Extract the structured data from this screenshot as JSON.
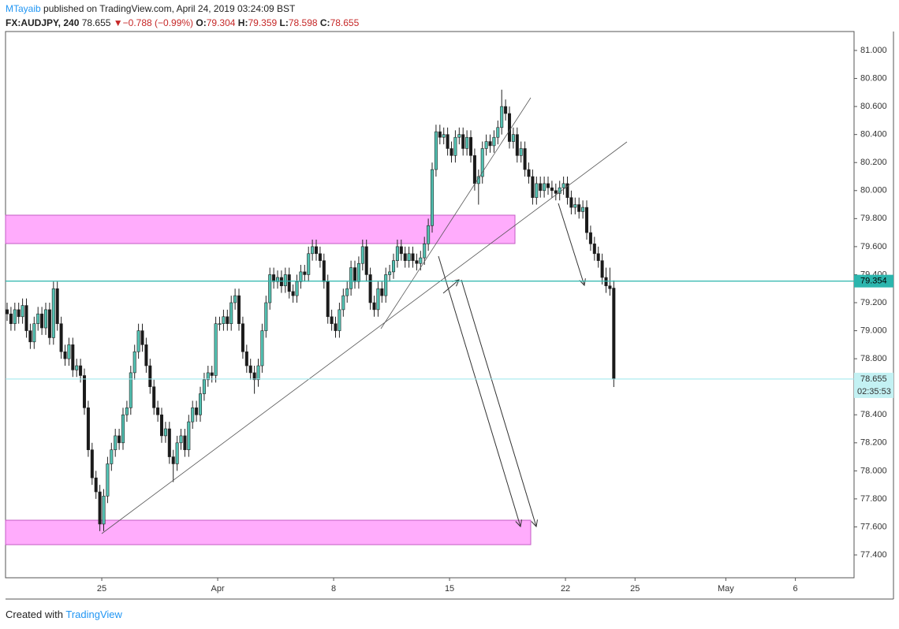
{
  "header": {
    "author": "MTayaib",
    "published": " published on TradingView.com, April 24, 2019 03:24:09 BST",
    "symbol": "FX:AUDJPY, 240",
    "arrow": "▼",
    "change": "−0.788 (−0.99%)",
    "ohlc_labels": [
      "O:",
      "H:",
      "L:",
      "C:"
    ]
  },
  "footer": {
    "created": "Created with",
    "brand": "TradingView"
  },
  "chart_data": {
    "type": "candlestick",
    "up_color": "#53c2b3",
    "down_color": "#1a1a1a",
    "hline": 79.354,
    "hline_label": "79.354",
    "countdown": "02:35:53",
    "xlim": [
      -0.41,
      219.18
    ],
    "xticks": [
      {
        "value": 24.5,
        "label": "25"
      },
      {
        "value": 54.5,
        "label": "Apr"
      },
      {
        "value": 84.5,
        "label": "8"
      },
      {
        "value": 114.5,
        "label": "15"
      },
      {
        "value": 144.5,
        "label": "22"
      },
      {
        "value": 162.5,
        "label": "25"
      },
      {
        "value": 186,
        "label": "May"
      },
      {
        "value": 204,
        "label": "6"
      }
    ],
    "ylim": [
      77.237,
      81.135
    ],
    "yticks": [
      {
        "value": 81,
        "label": "81.000"
      },
      {
        "value": 80.8,
        "label": "80.800"
      },
      {
        "value": 80.6,
        "label": "80.600"
      },
      {
        "value": 80.4,
        "label": "80.400"
      },
      {
        "value": 80.2,
        "label": "80.200"
      },
      {
        "value": 80,
        "label": "80.000"
      },
      {
        "value": 79.8,
        "label": "79.800"
      },
      {
        "value": 79.6,
        "label": "79.600"
      },
      {
        "value": 79.4,
        "label": "79.400"
      },
      {
        "value": 79.2,
        "label": "79.200"
      },
      {
        "value": 79,
        "label": "79.000"
      },
      {
        "value": 78.8,
        "label": "78.800"
      },
      {
        "value": 78.6,
        "label": "78.600"
      },
      {
        "value": 78.4,
        "label": "78.400"
      },
      {
        "value": 78.2,
        "label": "78.200"
      },
      {
        "value": 78,
        "label": "78.000"
      },
      {
        "value": 77.8,
        "label": "77.800"
      },
      {
        "value": 77.6,
        "label": "77.600"
      },
      {
        "value": 77.4,
        "label": "77.400"
      }
    ],
    "candles": [
      [
        79.15,
        79.2,
        79.07,
        79.12
      ],
      [
        79.12,
        79.17,
        79,
        79.05
      ],
      [
        79.05,
        79.2,
        79,
        79.15
      ],
      [
        79.15,
        79.2,
        79.05,
        79.1
      ],
      [
        79.1,
        79.23,
        79.05,
        79.18
      ],
      [
        79.18,
        79.23,
        78.95,
        79
      ],
      [
        79,
        79.05,
        78.87,
        78.92
      ],
      [
        78.92,
        79.1,
        78.87,
        79.05
      ],
      [
        79.05,
        79.17,
        79,
        79.12
      ],
      [
        79.12,
        79.17,
        78.97,
        79.02
      ],
      [
        79.02,
        79.2,
        78.97,
        79.15
      ],
      [
        79.15,
        79.2,
        78.9,
        78.95
      ],
      [
        78.95,
        79.35,
        78.9,
        79.3
      ],
      [
        79.3,
        79.35,
        79,
        79.05
      ],
      [
        79.05,
        79.1,
        78.8,
        78.85
      ],
      [
        78.85,
        78.9,
        78.75,
        78.8
      ],
      [
        78.8,
        78.95,
        78.75,
        78.9
      ],
      [
        78.9,
        78.95,
        78.67,
        78.72
      ],
      [
        78.72,
        78.8,
        78.67,
        78.75
      ],
      [
        78.75,
        78.8,
        78.63,
        78.68
      ],
      [
        78.68,
        78.73,
        78.4,
        78.45
      ],
      [
        78.45,
        78.5,
        78.1,
        78.15
      ],
      [
        78.15,
        78.2,
        77.9,
        77.95
      ],
      [
        77.95,
        78,
        77.8,
        77.85
      ],
      [
        77.85,
        77.9,
        77.57,
        77.62
      ],
      [
        77.62,
        77.87,
        77.57,
        77.82
      ],
      [
        77.82,
        78.1,
        77.77,
        78.05
      ],
      [
        78.05,
        78.2,
        78,
        78.15
      ],
      [
        78.15,
        78.3,
        78.1,
        78.25
      ],
      [
        78.25,
        78.3,
        78.15,
        78.2
      ],
      [
        78.2,
        78.45,
        78.15,
        78.4
      ],
      [
        78.4,
        78.5,
        78.35,
        78.45
      ],
      [
        78.45,
        78.75,
        78.4,
        78.7
      ],
      [
        78.7,
        78.9,
        78.65,
        78.85
      ],
      [
        78.85,
        79.05,
        78.8,
        79
      ],
      [
        79,
        79.05,
        78.85,
        78.9
      ],
      [
        78.9,
        78.95,
        78.7,
        78.75
      ],
      [
        78.75,
        78.8,
        78.55,
        78.6
      ],
      [
        78.6,
        78.65,
        78.4,
        78.45
      ],
      [
        78.45,
        78.5,
        78.35,
        78.4
      ],
      [
        78.4,
        78.45,
        78.2,
        78.25
      ],
      [
        78.25,
        78.35,
        78.2,
        78.3
      ],
      [
        78.3,
        78.35,
        78.05,
        78.1
      ],
      [
        78.1,
        78.15,
        77.92,
        78.05
      ],
      [
        78.05,
        78.25,
        78,
        78.2
      ],
      [
        78.2,
        78.3,
        78.15,
        78.25
      ],
      [
        78.25,
        78.3,
        78.1,
        78.15
      ],
      [
        78.15,
        78.4,
        78.1,
        78.35
      ],
      [
        78.35,
        78.5,
        78.3,
        78.45
      ],
      [
        78.45,
        78.5,
        78.35,
        78.4
      ],
      [
        78.4,
        78.6,
        78.35,
        78.55
      ],
      [
        78.55,
        78.7,
        78.5,
        78.65
      ],
      [
        78.65,
        78.75,
        78.6,
        78.7
      ],
      [
        78.7,
        78.75,
        78.63,
        78.68
      ],
      [
        78.68,
        79.1,
        78.63,
        79.05
      ],
      [
        79.05,
        79.1,
        79,
        79.05
      ],
      [
        79.05,
        79.15,
        79,
        79.1
      ],
      [
        79.1,
        79.15,
        79,
        79.05
      ],
      [
        79.05,
        79.25,
        79,
        79.2
      ],
      [
        79.2,
        79.3,
        79.15,
        79.25
      ],
      [
        79.25,
        79.3,
        79,
        79.05
      ],
      [
        79.05,
        79.1,
        78.8,
        78.85
      ],
      [
        78.85,
        78.9,
        78.7,
        78.75
      ],
      [
        78.75,
        78.8,
        78.65,
        78.7
      ],
      [
        78.7,
        78.75,
        78.55,
        78.65
      ],
      [
        78.65,
        78.8,
        78.6,
        78.75
      ],
      [
        78.75,
        79.05,
        78.7,
        79
      ],
      [
        79,
        79.25,
        78.95,
        79.2
      ],
      [
        79.2,
        79.45,
        79.15,
        79.4
      ],
      [
        79.4,
        79.45,
        79.3,
        79.35
      ],
      [
        79.35,
        79.43,
        79.3,
        79.38
      ],
      [
        79.38,
        79.43,
        79.27,
        79.32
      ],
      [
        79.32,
        79.45,
        79.27,
        79.4
      ],
      [
        79.4,
        79.45,
        79.23,
        79.28
      ],
      [
        79.28,
        79.33,
        79.2,
        79.25
      ],
      [
        79.25,
        79.4,
        79.2,
        79.35
      ],
      [
        79.35,
        79.47,
        79.3,
        79.42
      ],
      [
        79.42,
        79.47,
        79.35,
        79.4
      ],
      [
        79.4,
        79.6,
        79.35,
        79.55
      ],
      [
        79.55,
        79.65,
        79.5,
        79.6
      ],
      [
        79.6,
        79.65,
        79.5,
        79.55
      ],
      [
        79.55,
        79.6,
        79.45,
        79.5
      ],
      [
        79.5,
        79.55,
        79.3,
        79.35
      ],
      [
        79.35,
        79.4,
        79.05,
        79.1
      ],
      [
        79.1,
        79.15,
        79,
        79.05
      ],
      [
        79.05,
        79.1,
        78.95,
        79
      ],
      [
        79,
        79.2,
        78.95,
        79.15
      ],
      [
        79.15,
        79.3,
        79.1,
        79.25
      ],
      [
        79.25,
        79.35,
        79.2,
        79.3
      ],
      [
        79.3,
        79.5,
        79.25,
        79.45
      ],
      [
        79.45,
        79.5,
        79.3,
        79.35
      ],
      [
        79.35,
        79.53,
        79.3,
        79.48
      ],
      [
        79.48,
        79.65,
        79.43,
        79.6
      ],
      [
        79.6,
        79.65,
        79.35,
        79.4
      ],
      [
        79.4,
        79.45,
        79.15,
        79.2
      ],
      [
        79.2,
        79.25,
        79.1,
        79.15
      ],
      [
        79.15,
        79.35,
        79.1,
        79.3
      ],
      [
        79.3,
        79.35,
        79.2,
        79.25
      ],
      [
        79.25,
        79.45,
        79.2,
        79.4
      ],
      [
        79.4,
        79.47,
        79.35,
        79.42
      ],
      [
        79.42,
        79.55,
        79.37,
        79.5
      ],
      [
        79.5,
        79.65,
        79.45,
        79.6
      ],
      [
        79.6,
        79.65,
        79.5,
        79.55
      ],
      [
        79.55,
        79.6,
        79.45,
        79.5
      ],
      [
        79.5,
        79.6,
        79.45,
        79.55
      ],
      [
        79.55,
        79.6,
        79.45,
        79.5
      ],
      [
        79.5,
        79.55,
        79.43,
        79.48
      ],
      [
        79.48,
        79.57,
        79.43,
        79.52
      ],
      [
        79.52,
        79.67,
        79.47,
        79.62
      ],
      [
        79.62,
        79.8,
        79.57,
        79.75
      ],
      [
        79.75,
        80.2,
        79.7,
        80.15
      ],
      [
        80.15,
        80.47,
        80.1,
        80.42
      ],
      [
        80.42,
        80.47,
        80.33,
        80.38
      ],
      [
        80.38,
        80.45,
        80.33,
        80.4
      ],
      [
        80.4,
        80.45,
        80.25,
        80.3
      ],
      [
        80.3,
        80.35,
        80.2,
        80.25
      ],
      [
        80.25,
        80.43,
        80.2,
        80.38
      ],
      [
        80.38,
        80.45,
        80.33,
        80.4
      ],
      [
        80.4,
        80.45,
        80.25,
        80.3
      ],
      [
        80.3,
        80.43,
        80.25,
        80.38
      ],
      [
        80.38,
        80.43,
        80.2,
        80.25
      ],
      [
        80.25,
        80.3,
        80,
        80.05
      ],
      [
        80.05,
        80.15,
        79.9,
        80.1
      ],
      [
        80.1,
        80.35,
        80.05,
        80.3
      ],
      [
        80.3,
        80.4,
        80.25,
        80.35
      ],
      [
        80.35,
        80.4,
        80.27,
        80.32
      ],
      [
        80.32,
        80.43,
        80.27,
        80.38
      ],
      [
        80.38,
        80.5,
        80.33,
        80.45
      ],
      [
        80.45,
        80.72,
        80.4,
        80.6
      ],
      [
        80.6,
        80.65,
        80.5,
        80.55
      ],
      [
        80.55,
        80.6,
        80.3,
        80.35
      ],
      [
        80.35,
        80.45,
        80.3,
        80.4
      ],
      [
        80.4,
        80.45,
        80.2,
        80.25
      ],
      [
        80.25,
        80.35,
        80.2,
        80.3
      ],
      [
        80.3,
        80.35,
        80.1,
        80.15
      ],
      [
        80.15,
        80.2,
        80.05,
        80.1
      ],
      [
        80.1,
        80.15,
        79.9,
        79.95
      ],
      [
        79.95,
        80.1,
        79.9,
        80.05
      ],
      [
        80.05,
        80.1,
        79.95,
        80
      ],
      [
        80,
        80.1,
        79.95,
        80.05
      ],
      [
        80.05,
        80.1,
        79.97,
        80.02
      ],
      [
        80.02,
        80.07,
        79.95,
        80
      ],
      [
        80,
        80.05,
        79.93,
        79.98
      ],
      [
        79.98,
        80.07,
        79.93,
        80.02
      ],
      [
        80.02,
        80.1,
        79.97,
        80.05
      ],
      [
        80.05,
        80.1,
        79.9,
        79.95
      ],
      [
        79.95,
        80,
        79.83,
        79.88
      ],
      [
        79.88,
        79.95,
        79.83,
        79.9
      ],
      [
        79.9,
        79.95,
        79.8,
        79.85
      ],
      [
        79.85,
        79.93,
        79.8,
        79.88
      ],
      [
        79.88,
        79.93,
        79.65,
        79.7
      ],
      [
        79.7,
        79.75,
        79.57,
        79.62
      ],
      [
        79.62,
        79.67,
        79.5,
        79.55
      ],
      [
        79.55,
        79.6,
        79.45,
        79.5
      ],
      [
        79.5,
        79.55,
        79.33,
        79.38
      ],
      [
        79.38,
        79.45,
        79.27,
        79.32
      ],
      [
        79.32,
        79.45,
        79.25,
        79.3
      ],
      [
        79.304,
        79.359,
        78.598,
        78.655
      ]
    ]
  }
}
